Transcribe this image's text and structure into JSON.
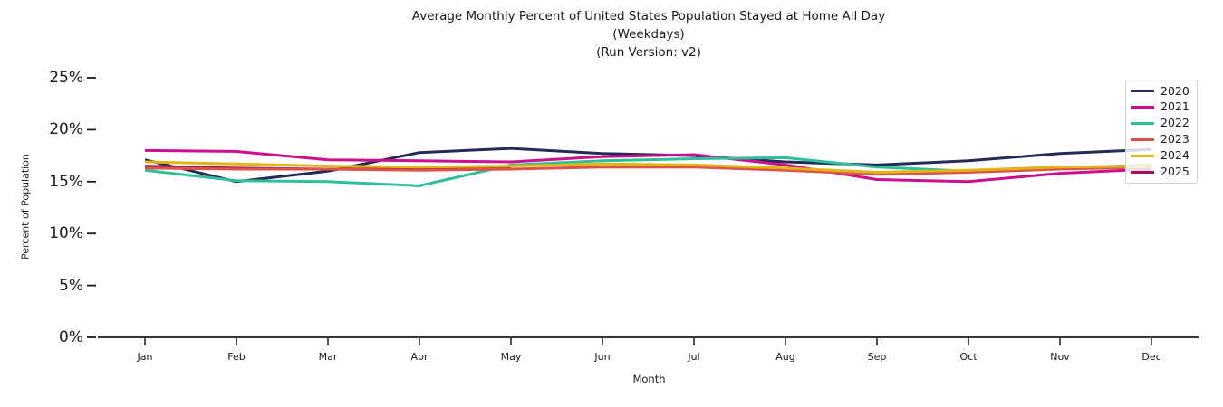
{
  "title": {
    "line1": "Average Monthly Percent of United States Population Stayed at Home All Day",
    "line2": "(Weekdays)",
    "line3": "(Run Version: v2)"
  },
  "chart_data": {
    "type": "line",
    "x": [
      "Jan",
      "Feb",
      "Mar",
      "Apr",
      "May",
      "Jun",
      "Jul",
      "Aug",
      "Sep",
      "Oct",
      "Nov",
      "Dec"
    ],
    "xlabel": "Month",
    "ylabel": "Percent of Population",
    "ylim": [
      0,
      25
    ],
    "yticks": [
      0,
      5,
      10,
      15,
      20,
      25
    ],
    "ytick_labels": [
      "0%",
      "5%",
      "10%",
      "15%",
      "20%",
      "25%"
    ],
    "grid": false,
    "legend_position": "upper right",
    "legend_order": [
      "2020",
      "2021",
      "2022",
      "2023",
      "2024",
      "2025"
    ],
    "draw_order": [
      "2020",
      "2021",
      "2022",
      "2025",
      "2023",
      "2024"
    ],
    "series": [
      {
        "name": "2020",
        "color": "#262a56",
        "values": [
          17.1,
          15.0,
          16.0,
          17.8,
          18.2,
          17.7,
          17.5,
          16.9,
          16.6,
          17.0,
          17.7,
          18.1
        ]
      },
      {
        "name": "2021",
        "color": "#cc0f8d",
        "values": [
          18.0,
          17.9,
          17.1,
          17.0,
          16.9,
          17.4,
          17.6,
          16.6,
          15.2,
          15.0,
          15.8,
          16.2
        ]
      },
      {
        "name": "2022",
        "color": "#2fbf9b",
        "values": [
          16.1,
          15.1,
          15.0,
          14.6,
          16.6,
          17.0,
          17.2,
          17.3,
          16.4,
          16.0,
          16.3,
          16.6
        ]
      },
      {
        "name": "2023",
        "color": "#dc5349",
        "values": [
          16.3,
          16.2,
          16.2,
          16.1,
          16.2,
          16.4,
          16.4,
          16.1,
          15.7,
          15.9,
          16.2,
          16.4
        ]
      },
      {
        "name": "2024",
        "color": "#e0b616",
        "values": [
          16.9,
          16.7,
          16.5,
          16.4,
          16.5,
          16.7,
          16.6,
          16.3,
          15.9,
          16.1,
          16.4,
          16.5
        ]
      },
      {
        "name": "2025",
        "color": "#a11357",
        "values": [
          16.5,
          16.3,
          16.2,
          16.2,
          16.3,
          null,
          null,
          null,
          null,
          null,
          null,
          null
        ]
      }
    ]
  }
}
